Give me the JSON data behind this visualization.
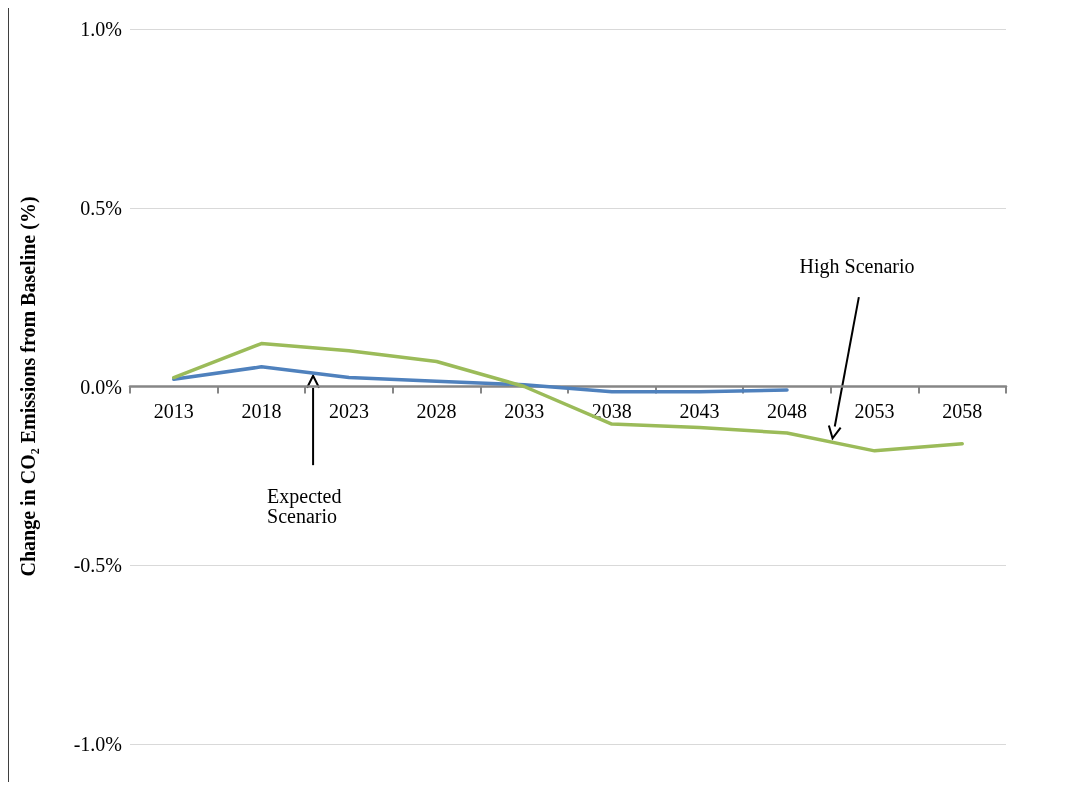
{
  "chart_data": {
    "type": "line",
    "ylabel": "Change in CO₂ Emissions from Baseline (%)",
    "categories": [
      "2013",
      "2018",
      "2023",
      "2028",
      "2033",
      "2038",
      "2043",
      "2048",
      "2053",
      "2058"
    ],
    "series": [
      {
        "color": "#4f81bd",
        "values": [
          0.02,
          0.055,
          0.025,
          0.015,
          0.005,
          -0.015,
          -0.015,
          -0.01,
          null,
          null
        ]
      },
      {
        "color": "#9bbb59",
        "values": [
          0.025,
          0.12,
          0.1,
          0.07,
          0,
          -0.105,
          -0.115,
          -0.13,
          -0.18,
          -0.16
        ]
      }
    ],
    "ylim": [
      -1,
      1
    ],
    "yticks": [
      {
        "value": -1,
        "label": "-1.0%"
      },
      {
        "value": -0.5,
        "label": "-0.5%"
      },
      {
        "value": 0,
        "label": "0.0%"
      },
      {
        "value": 0.5,
        "label": "0.5%"
      },
      {
        "value": 1,
        "label": "1.0%"
      }
    ],
    "grid": "y",
    "marker": "none",
    "line_style": "solid",
    "annotations": [
      "Expected\nScenario",
      "High Scenario"
    ]
  }
}
